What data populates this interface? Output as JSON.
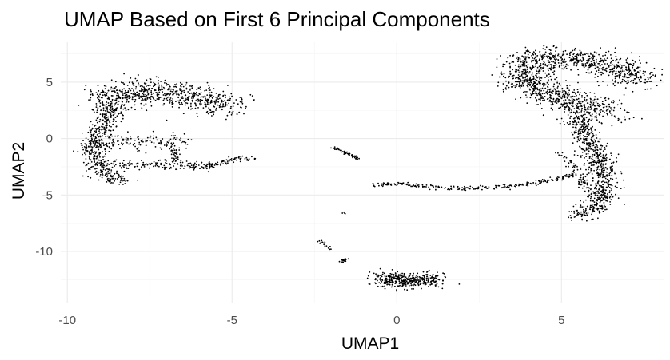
{
  "chart_data": {
    "type": "scatter",
    "title": "UMAP Based on First 6 Principal Components",
    "xlabel": "UMAP1",
    "ylabel": "UMAP2",
    "xlim": [
      -10.2,
      8.1
    ],
    "ylim": [
      -14.6,
      8.6
    ],
    "x_ticks": [
      -10,
      -5,
      0,
      5
    ],
    "x_tick_labels": [
      "-10",
      "-5",
      "0",
      "5"
    ],
    "y_ticks": [
      -10,
      -5,
      0,
      5
    ],
    "y_tick_labels": [
      "-10",
      "-5",
      "0",
      "5"
    ],
    "grid": true,
    "point_color": "#000000",
    "clusters": [
      {
        "x": [
          -8.9,
          -7.6,
          -6.8,
          -6.0,
          -5.2,
          -4.9
        ],
        "y": [
          3.4,
          4.3,
          4.0,
          3.6,
          3.0,
          2.8
        ],
        "spread": 0.6,
        "n": 700
      },
      {
        "x": [
          -8.6,
          -8.9,
          -9.2,
          -9.1,
          -8.7,
          -8.3
        ],
        "y": [
          3.1,
          1.2,
          -0.8,
          -2.5,
          -3.5,
          -3.8
        ],
        "spread": 0.35,
        "n": 500
      },
      {
        "x": [
          -9.0,
          -8.0,
          -7.2,
          -6.4
        ],
        "y": [
          -0.6,
          -0.2,
          -0.5,
          -0.3
        ],
        "spread": 0.35,
        "n": 150
      },
      {
        "x": [
          -8.5,
          -7.4,
          -6.6,
          -5.6
        ],
        "y": [
          -2.3,
          -2.3,
          -2.4,
          -2.4
        ],
        "spread": 0.2,
        "n": 140
      },
      {
        "x": [
          -6.8,
          -6.7,
          -6.6
        ],
        "y": [
          -1.0,
          -1.6,
          -2.2
        ],
        "spread": 0.15,
        "n": 40
      },
      {
        "x": [
          -5.8,
          -5.3,
          -4.8,
          -4.3
        ],
        "y": [
          -2.5,
          -2.1,
          -1.7,
          -1.8
        ],
        "spread": 0.12,
        "n": 70
      },
      {
        "x": [
          -1.9,
          -1.6,
          -1.4,
          -1.1
        ],
        "y": [
          -0.8,
          -1.2,
          -1.5,
          -1.8
        ],
        "spread": 0.07,
        "n": 60
      },
      {
        "x": [
          -0.7,
          0.0,
          1.0,
          2.0,
          3.2,
          4.5,
          5.4
        ],
        "y": [
          -4.1,
          -4.0,
          -4.3,
          -4.4,
          -4.3,
          -3.8,
          -3.2
        ],
        "spread": 0.1,
        "n": 250
      },
      {
        "x": [
          -1.6
        ],
        "y": [
          -6.6
        ],
        "spread": 0.05,
        "n": 4
      },
      {
        "x": [
          -2.4,
          -2.2,
          -2.0
        ],
        "y": [
          -9.0,
          -9.4,
          -9.8
        ],
        "spread": 0.06,
        "n": 18
      },
      {
        "x": [
          -1.7,
          -1.5
        ],
        "y": [
          -10.9,
          -10.7
        ],
        "spread": 0.07,
        "n": 18
      },
      {
        "x": [
          -0.5,
          0.0,
          0.5,
          1.2
        ],
        "y": [
          -12.6,
          -12.4,
          -12.6,
          -12.4
        ],
        "spread": 0.35,
        "n": 400
      },
      {
        "x": [
          3.6,
          4.5,
          5.3,
          6.0,
          6.8,
          7.4
        ],
        "y": [
          6.7,
          7.0,
          7.1,
          6.7,
          6.1,
          5.3
        ],
        "spread": 0.55,
        "n": 650
      },
      {
        "x": [
          3.6,
          4.3,
          5.0,
          5.8,
          6.6
        ],
        "y": [
          6.0,
          4.5,
          3.5,
          2.7,
          2.2
        ],
        "spread": 0.55,
        "n": 700
      },
      {
        "x": [
          5.5,
          5.8,
          6.1,
          6.3,
          6.3,
          6.0,
          5.5
        ],
        "y": [
          2.0,
          0.0,
          -1.8,
          -3.5,
          -5.1,
          -6.2,
          -6.9
        ],
        "spread": 0.35,
        "n": 700
      },
      {
        "x": [
          4.9,
          5.3,
          5.6,
          5.9
        ],
        "y": [
          -1.3,
          -2.2,
          -3.6,
          -5.0
        ],
        "spread": 0.15,
        "n": 80
      }
    ]
  }
}
